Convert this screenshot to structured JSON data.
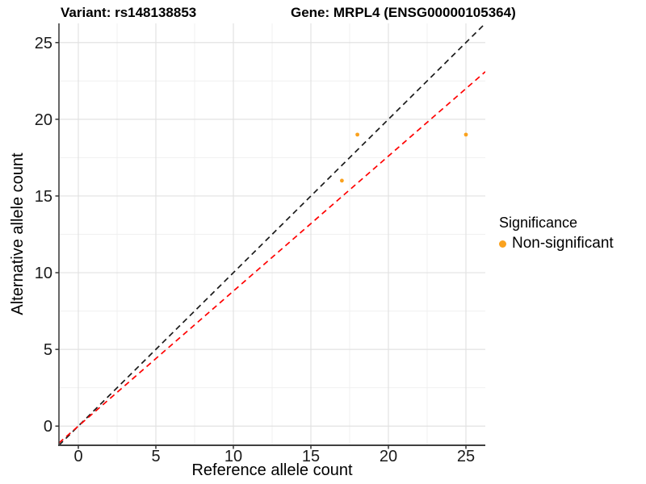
{
  "title": {
    "variant": "Variant: rs148138853",
    "gene": "Gene: MRPL4 (ENSG00000105364)"
  },
  "chart_data": {
    "type": "scatter",
    "title": "Variant: rs148138853        Gene: MRPL4 (ENSG00000105364)",
    "xlabel": "Reference allele count",
    "ylabel": "Alternative allele count",
    "xlim": [
      -1.25,
      26.25
    ],
    "ylim": [
      -1.25,
      26.25
    ],
    "x_ticks": [
      0,
      5,
      10,
      15,
      20,
      25
    ],
    "y_ticks": [
      0,
      5,
      10,
      15,
      20,
      25
    ],
    "x_minor_ticks": [
      2.5,
      7.5,
      12.5,
      17.5,
      22.5
    ],
    "y_minor_ticks": [
      2.5,
      7.5,
      12.5,
      17.5,
      22.5
    ],
    "grid": "major+minor",
    "series": [
      {
        "name": "Non-significant",
        "color": "#FAA21E",
        "points": [
          [
            17,
            16
          ],
          [
            18,
            19
          ],
          [
            25,
            19
          ]
        ]
      }
    ],
    "reference_lines": [
      {
        "name": "identity",
        "slope": 1,
        "intercept": 0,
        "color": "#1A1A1A",
        "style": "dashed"
      },
      {
        "name": "regression",
        "slope": 0.88,
        "intercept": 0,
        "color": "#FF0000",
        "style": "dashed"
      }
    ],
    "colors": {
      "point": "#FAA21E",
      "identity_line": "#1A1A1A",
      "regression_line": "#FF0000",
      "major_grid": "#E2E2E2",
      "minor_grid": "#F0F0F0",
      "axis_line": "#404040"
    },
    "legend": {
      "title": "Significance",
      "position": "right",
      "items": [
        {
          "label": "Non-significant",
          "color": "#FAA21E",
          "marker": "circle"
        }
      ]
    }
  }
}
